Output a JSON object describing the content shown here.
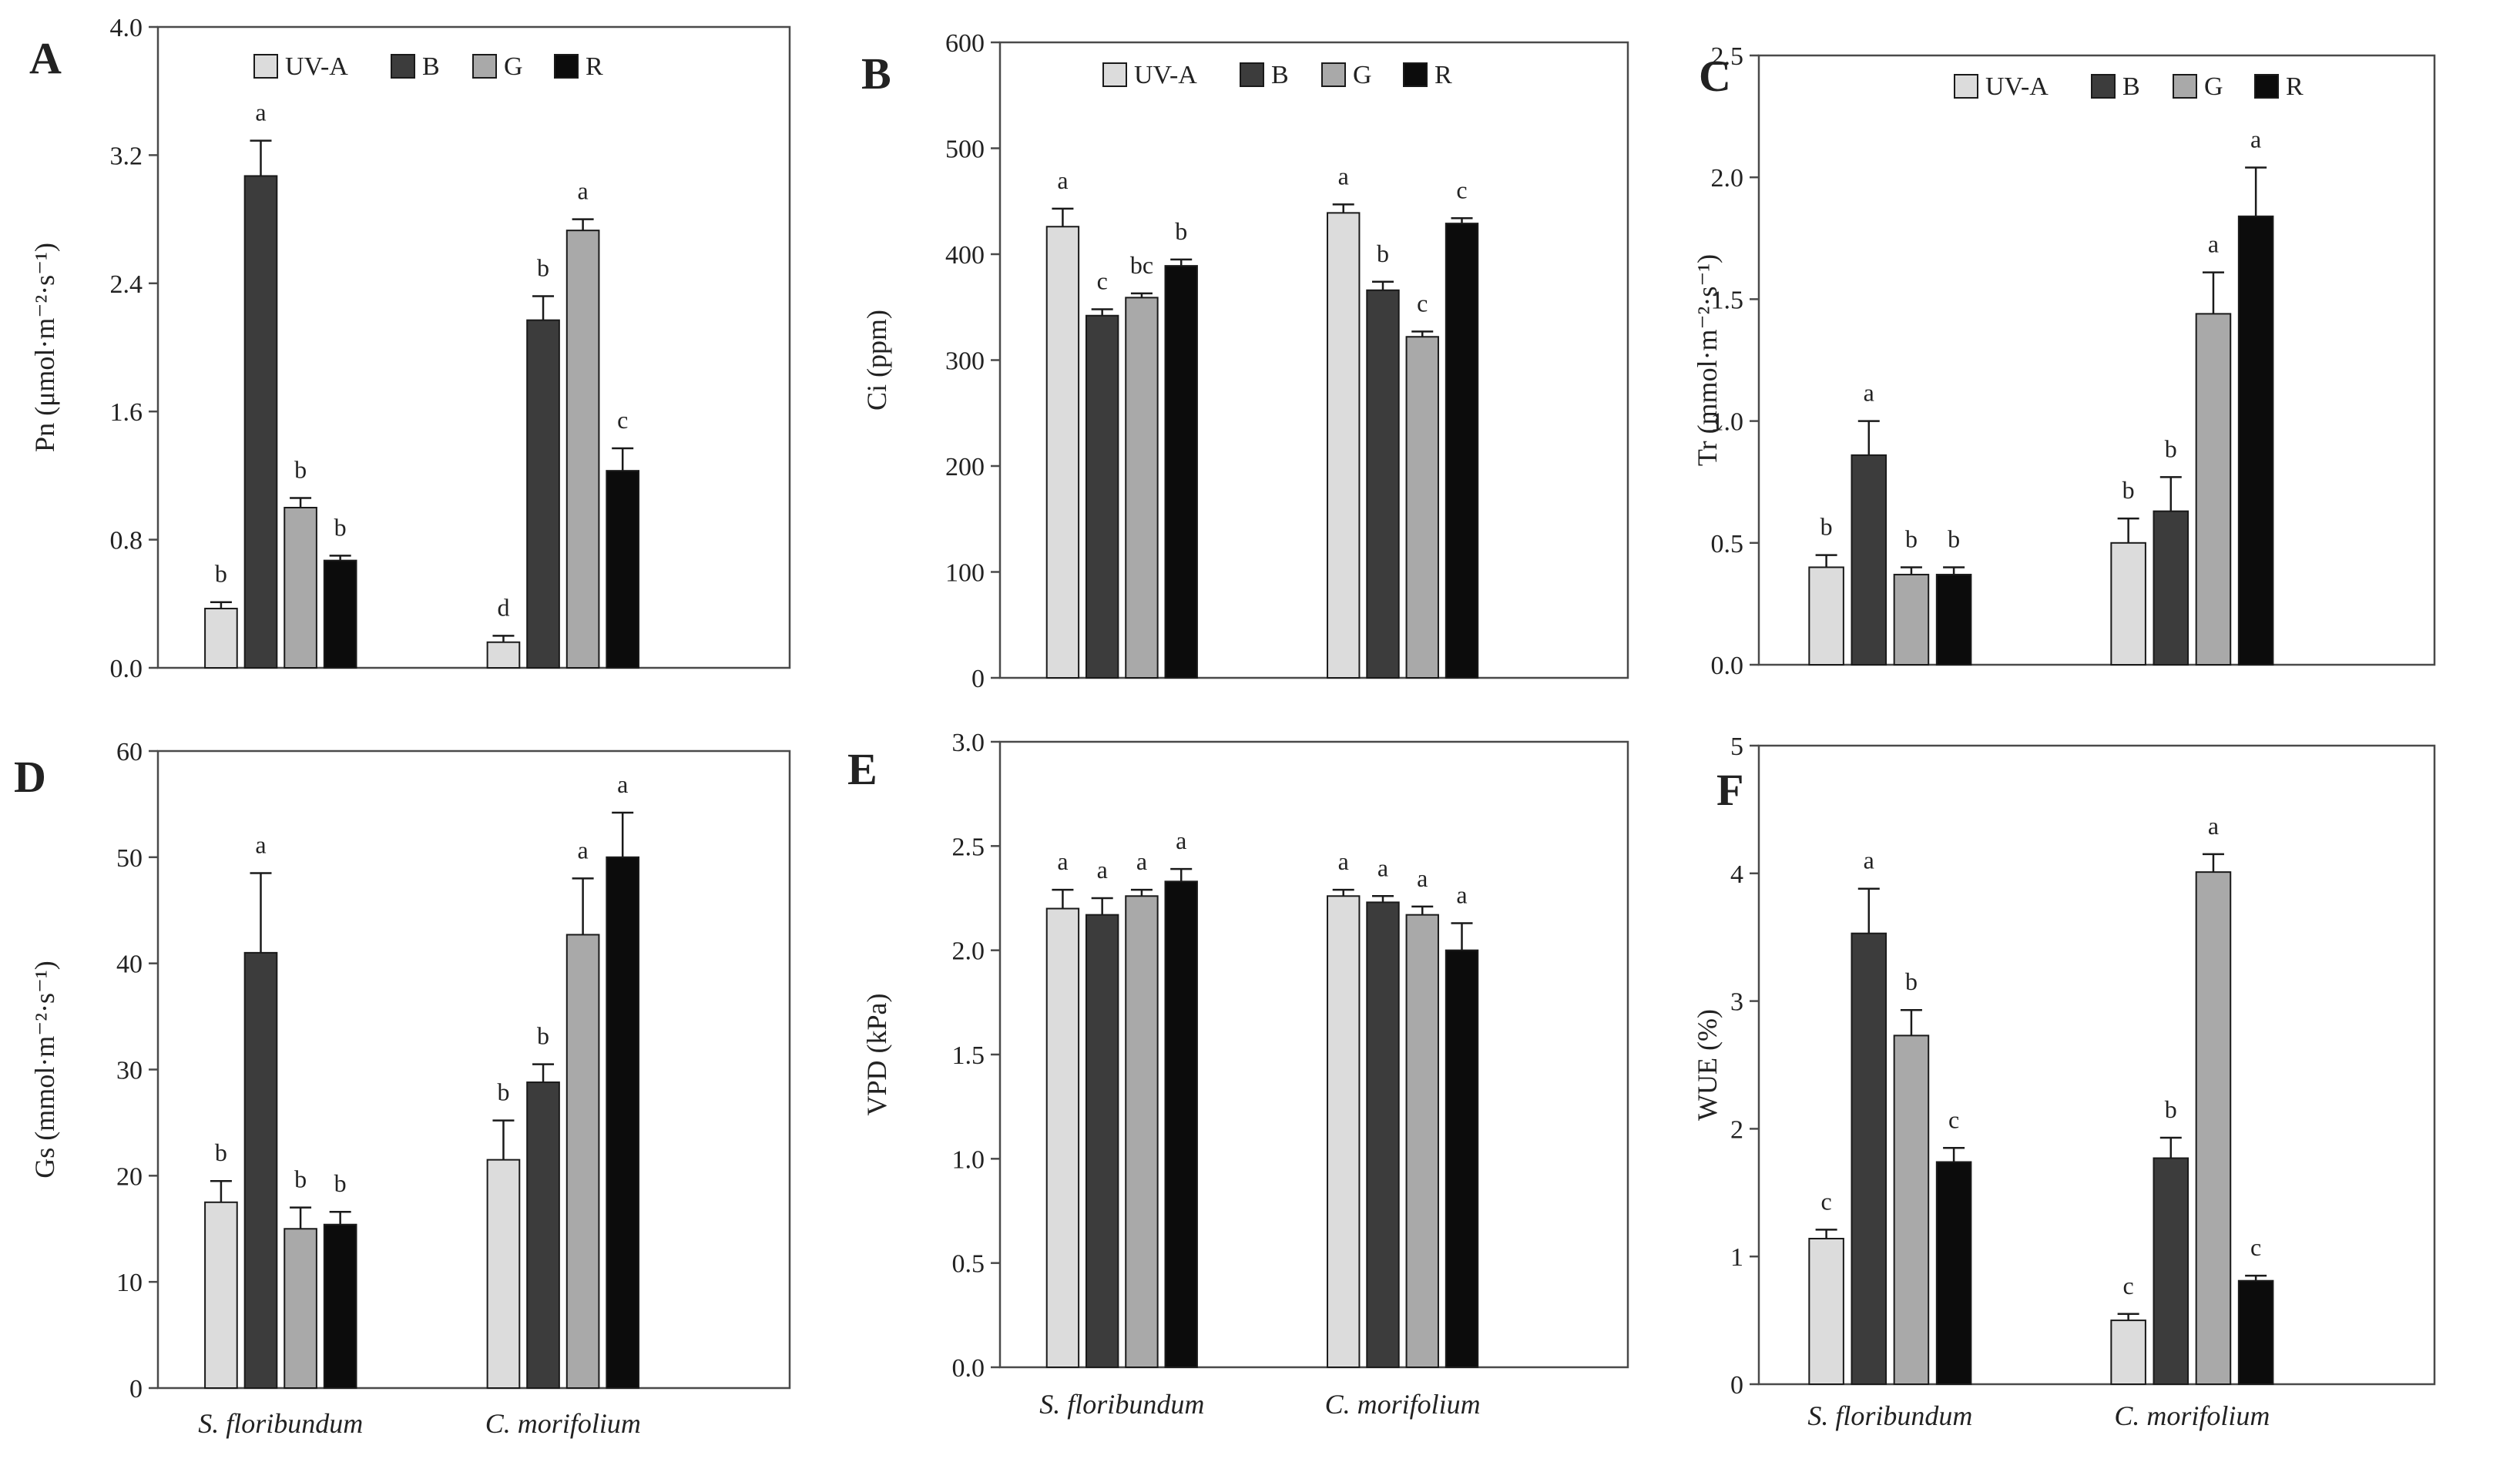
{
  "figure": {
    "groups": [
      "S. floribundum",
      "C. morifolium"
    ],
    "legend": [
      "UV-A",
      "B",
      "G",
      "R"
    ]
  },
  "colors": {
    "UV-A": "#dcdcdc",
    "B": "#3c3c3c",
    "G": "#a9a9a9",
    "R": "#0c0c0c",
    "axis": "#4a4a4a",
    "text": "#222222"
  },
  "chart_data": [
    {
      "panel": "A",
      "type": "bar",
      "ylabel": "Pn (μmol·m⁻²·s⁻¹)",
      "ylim": [
        0,
        4.0
      ],
      "yticks": [
        "0.0",
        "0.8",
        "1.6",
        "2.4",
        "3.2",
        "4.0"
      ],
      "categories": [
        "S. floribundum",
        "C. morifolium"
      ],
      "show_group_labels": false,
      "series": [
        {
          "name": "UV-A",
          "values": [
            0.37,
            0.16
          ],
          "errors": [
            0.04,
            0.04
          ],
          "letters": [
            "b",
            "d"
          ]
        },
        {
          "name": "B",
          "values": [
            3.07,
            2.17
          ],
          "errors": [
            0.22,
            0.15
          ],
          "letters": [
            "a",
            "b"
          ]
        },
        {
          "name": "G",
          "values": [
            1.0,
            2.73
          ],
          "errors": [
            0.06,
            0.07
          ],
          "letters": [
            "b",
            "a"
          ]
        },
        {
          "name": "R",
          "values": [
            0.67,
            1.23
          ],
          "errors": [
            0.03,
            0.14
          ],
          "letters": [
            "b",
            "c"
          ]
        }
      ]
    },
    {
      "panel": "B",
      "type": "bar",
      "ylabel": "Ci (ppm)",
      "ylim": [
        0,
        600
      ],
      "yticks": [
        "0",
        "100",
        "200",
        "300",
        "400",
        "500",
        "600"
      ],
      "categories": [
        "S. floribundum",
        "C. morifolium"
      ],
      "show_group_labels": false,
      "series": [
        {
          "name": "UV-A",
          "values": [
            426,
            439
          ],
          "errors": [
            17,
            8
          ],
          "letters": [
            "a",
            "a"
          ]
        },
        {
          "name": "B",
          "values": [
            342,
            366
          ],
          "errors": [
            6,
            8
          ],
          "letters": [
            "c",
            "b"
          ]
        },
        {
          "name": "G",
          "values": [
            359,
            322
          ],
          "errors": [
            4,
            5
          ],
          "letters": [
            "bc",
            "c"
          ]
        },
        {
          "name": "R",
          "values": [
            389,
            429
          ],
          "errors": [
            6,
            5
          ],
          "letters": [
            "b",
            "c"
          ]
        }
      ]
    },
    {
      "panel": "C",
      "type": "bar",
      "ylabel": "Tr (mmol·m⁻²·s⁻¹)",
      "ylim": [
        0,
        2.5
      ],
      "yticks": [
        "0.0",
        "0.5",
        "1.0",
        "1.5",
        "2.0",
        "2.5"
      ],
      "categories": [
        "S. floribundum",
        "C. morifolium"
      ],
      "show_group_labels": false,
      "series": [
        {
          "name": "UV-A",
          "values": [
            0.4,
            0.5
          ],
          "errors": [
            0.05,
            0.1
          ],
          "letters": [
            "b",
            "b"
          ]
        },
        {
          "name": "B",
          "values": [
            0.86,
            0.63
          ],
          "errors": [
            0.14,
            0.14
          ],
          "letters": [
            "a",
            "b"
          ]
        },
        {
          "name": "G",
          "values": [
            0.37,
            1.44
          ],
          "errors": [
            0.03,
            0.17
          ],
          "letters": [
            "b",
            "a"
          ]
        },
        {
          "name": "R",
          "values": [
            0.37,
            1.84
          ],
          "errors": [
            0.03,
            0.2
          ],
          "letters": [
            "b",
            "a"
          ]
        }
      ]
    },
    {
      "panel": "D",
      "type": "bar",
      "ylabel": "Gs (mmol·m⁻²·s⁻¹)",
      "ylim": [
        0,
        60
      ],
      "yticks": [
        "0",
        "10",
        "20",
        "30",
        "40",
        "50",
        "60"
      ],
      "categories": [
        "S. floribundum",
        "C. morifolium"
      ],
      "show_group_labels": true,
      "series": [
        {
          "name": "UV-A",
          "values": [
            17.5,
            21.5
          ],
          "errors": [
            2.0,
            3.7
          ],
          "letters": [
            "b",
            "b"
          ]
        },
        {
          "name": "B",
          "values": [
            41.0,
            28.8
          ],
          "errors": [
            7.5,
            1.7
          ],
          "letters": [
            "a",
            "b"
          ]
        },
        {
          "name": "G",
          "values": [
            15.0,
            42.7
          ],
          "errors": [
            2.0,
            5.3
          ],
          "letters": [
            "b",
            "a"
          ]
        },
        {
          "name": "R",
          "values": [
            15.4,
            50.0
          ],
          "errors": [
            1.2,
            4.2
          ],
          "letters": [
            "b",
            "a"
          ]
        }
      ]
    },
    {
      "panel": "E",
      "type": "bar",
      "ylabel": "VPD (kPa)",
      "ylim": [
        0,
        3.0
      ],
      "yticks": [
        "0.0",
        "0.5",
        "1.0",
        "1.5",
        "2.0",
        "2.5",
        "3.0"
      ],
      "categories": [
        "S. floribundum",
        "C. morifolium"
      ],
      "show_group_labels": true,
      "series": [
        {
          "name": "UV-A",
          "values": [
            2.2,
            2.26
          ],
          "errors": [
            0.09,
            0.03
          ],
          "letters": [
            "a",
            "a"
          ]
        },
        {
          "name": "B",
          "values": [
            2.17,
            2.23
          ],
          "errors": [
            0.08,
            0.03
          ],
          "letters": [
            "a",
            "a"
          ]
        },
        {
          "name": "G",
          "values": [
            2.26,
            2.17
          ],
          "errors": [
            0.03,
            0.04
          ],
          "letters": [
            "a",
            "a"
          ]
        },
        {
          "name": "R",
          "values": [
            2.33,
            2.0
          ],
          "errors": [
            0.06,
            0.13
          ],
          "letters": [
            "a",
            "a"
          ]
        }
      ]
    },
    {
      "panel": "F",
      "type": "bar",
      "ylabel": "WUE (%)",
      "ylim": [
        0,
        5
      ],
      "yticks": [
        "0",
        "1",
        "2",
        "3",
        "4",
        "5"
      ],
      "categories": [
        "S. floribundum",
        "C. morifolium"
      ],
      "show_group_labels": true,
      "series": [
        {
          "name": "UV-A",
          "values": [
            1.14,
            0.5
          ],
          "errors": [
            0.07,
            0.05
          ],
          "letters": [
            "c",
            "c"
          ]
        },
        {
          "name": "B",
          "values": [
            3.53,
            1.77
          ],
          "errors": [
            0.35,
            0.16
          ],
          "letters": [
            "a",
            "b"
          ]
        },
        {
          "name": "G",
          "values": [
            2.73,
            4.01
          ],
          "errors": [
            0.2,
            0.14
          ],
          "letters": [
            "b",
            "a"
          ]
        },
        {
          "name": "R",
          "values": [
            1.74,
            0.81
          ],
          "errors": [
            0.11,
            0.04
          ],
          "letters": [
            "c",
            "c"
          ]
        }
      ]
    }
  ]
}
